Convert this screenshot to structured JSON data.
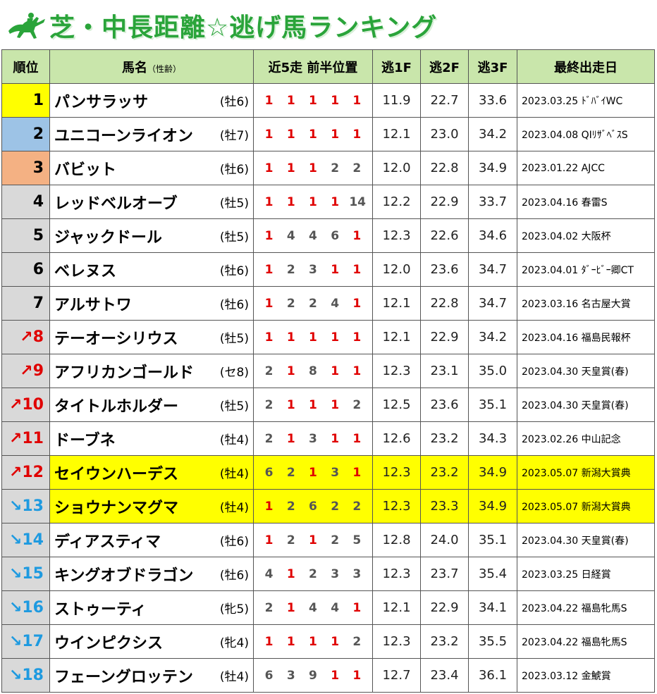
{
  "title": "芝・中長距離☆逃げ馬ランキング",
  "headers": {
    "rank": "順位",
    "name": "馬名",
    "name_sub": "（性齢）",
    "positions": "近5走 前半位置",
    "f1": "逃1F",
    "f2": "逃2F",
    "f3": "逃3F",
    "last": "最終出走日"
  },
  "colors": {
    "header_bg": "#c9e6ab",
    "rank1": "#ffff00",
    "rank2": "#9dc3e6",
    "rank3": "#f4b183",
    "rank_other": "#d9d9d9",
    "highlight": "#ffff00",
    "title": "#2aa43a",
    "red_position": "#e00000",
    "up_arrow": "#e00000",
    "down_arrow": "#1e9ae0"
  },
  "rows": [
    {
      "rank": "1",
      "arrow": "",
      "name": "パンサラッサ",
      "sex": "(牡6)",
      "pos": [
        "1",
        "1",
        "1",
        "1",
        "1"
      ],
      "f1": "11.9",
      "f2": "22.7",
      "f3": "33.6",
      "last": "2023.03.25 ﾄﾞﾊﾞｲWC",
      "rank_bg": "#ffff00",
      "highlight": false
    },
    {
      "rank": "2",
      "arrow": "",
      "name": "ユニコーンライオン",
      "sex": "(牡7)",
      "pos": [
        "1",
        "1",
        "1",
        "1",
        "1"
      ],
      "f1": "12.1",
      "f2": "23.0",
      "f3": "34.2",
      "last": "2023.04.08 QIﾘｻﾞﾍﾞｽS",
      "rank_bg": "#9dc3e6",
      "highlight": false
    },
    {
      "rank": "3",
      "arrow": "",
      "name": "バビット",
      "sex": "(牡6)",
      "pos": [
        "1",
        "1",
        "1",
        "2",
        "2"
      ],
      "f1": "12.0",
      "f2": "22.8",
      "f3": "34.9",
      "last": "2023.01.22 AJCC",
      "rank_bg": "#f4b183",
      "highlight": false
    },
    {
      "rank": "4",
      "arrow": "",
      "name": "レッドベルオーブ",
      "sex": "(牡5)",
      "pos": [
        "1",
        "1",
        "1",
        "1",
        "14"
      ],
      "f1": "12.2",
      "f2": "22.9",
      "f3": "33.7",
      "last": "2023.04.16 春雷S",
      "rank_bg": "#d9d9d9",
      "highlight": false
    },
    {
      "rank": "5",
      "arrow": "",
      "name": "ジャックドール",
      "sex": "(牡5)",
      "pos": [
        "1",
        "4",
        "4",
        "6",
        "1"
      ],
      "f1": "12.3",
      "f2": "22.6",
      "f3": "34.6",
      "last": "2023.04.02 大阪杯",
      "rank_bg": "#d9d9d9",
      "highlight": false
    },
    {
      "rank": "6",
      "arrow": "",
      "name": "ベレヌス",
      "sex": "(牡6)",
      "pos": [
        "1",
        "2",
        "3",
        "1",
        "1"
      ],
      "f1": "12.0",
      "f2": "23.6",
      "f3": "34.7",
      "last": "2023.04.01 ﾀﾞｰﾋﾞｰ卿CT",
      "rank_bg": "#d9d9d9",
      "highlight": false
    },
    {
      "rank": "7",
      "arrow": "",
      "name": "アルサトワ",
      "sex": "(牡6)",
      "pos": [
        "1",
        "2",
        "2",
        "4",
        "1"
      ],
      "f1": "12.1",
      "f2": "22.8",
      "f3": "34.7",
      "last": "2023.03.16 名古屋大賞",
      "rank_bg": "#d9d9d9",
      "highlight": false
    },
    {
      "rank": "8",
      "arrow": "up",
      "name": "テーオーシリウス",
      "sex": "(牡5)",
      "pos": [
        "1",
        "1",
        "1",
        "1",
        "1"
      ],
      "f1": "12.1",
      "f2": "22.9",
      "f3": "34.2",
      "last": "2023.04.16 福島民報杯",
      "rank_bg": "#d9d9d9",
      "highlight": false
    },
    {
      "rank": "9",
      "arrow": "up",
      "name": "アフリカンゴールド",
      "sex": "(セ8)",
      "pos": [
        "2",
        "1",
        "8",
        "1",
        "1"
      ],
      "f1": "12.3",
      "f2": "23.1",
      "f3": "35.0",
      "last": "2023.04.30 天皇賞(春)",
      "rank_bg": "#d9d9d9",
      "highlight": false
    },
    {
      "rank": "10",
      "arrow": "up",
      "name": "タイトルホルダー",
      "sex": "(牡5)",
      "pos": [
        "2",
        "1",
        "1",
        "1",
        "2"
      ],
      "f1": "12.5",
      "f2": "23.6",
      "f3": "35.1",
      "last": "2023.04.30 天皇賞(春)",
      "rank_bg": "#d9d9d9",
      "highlight": false
    },
    {
      "rank": "11",
      "arrow": "up",
      "name": "ドーブネ",
      "sex": "(牡4)",
      "pos": [
        "2",
        "1",
        "3",
        "1",
        "1"
      ],
      "f1": "12.6",
      "f2": "23.2",
      "f3": "34.3",
      "last": "2023.02.26 中山記念",
      "rank_bg": "#d9d9d9",
      "highlight": false
    },
    {
      "rank": "12",
      "arrow": "up",
      "name": "セイウンハーデス",
      "sex": "(牡4)",
      "pos": [
        "6",
        "2",
        "1",
        "3",
        "1"
      ],
      "f1": "12.3",
      "f2": "23.2",
      "f3": "34.9",
      "last": "2023.05.07 新潟大賞典",
      "rank_bg": "#d9d9d9",
      "highlight": true
    },
    {
      "rank": "13",
      "arrow": "down",
      "name": "ショウナンマグマ",
      "sex": "(牡4)",
      "pos": [
        "1",
        "2",
        "6",
        "2",
        "2"
      ],
      "f1": "12.3",
      "f2": "23.3",
      "f3": "34.9",
      "last": "2023.05.07 新潟大賞典",
      "rank_bg": "#d9d9d9",
      "highlight": true
    },
    {
      "rank": "14",
      "arrow": "down",
      "name": "ディアスティマ",
      "sex": "(牡6)",
      "pos": [
        "1",
        "2",
        "1",
        "2",
        "5"
      ],
      "f1": "12.8",
      "f2": "24.0",
      "f3": "35.1",
      "last": "2023.04.30 天皇賞(春)",
      "rank_bg": "#d9d9d9",
      "highlight": false
    },
    {
      "rank": "15",
      "arrow": "down",
      "name": "キングオブドラゴン",
      "sex": "(牡6)",
      "pos": [
        "4",
        "1",
        "2",
        "3",
        "3"
      ],
      "f1": "12.3",
      "f2": "23.7",
      "f3": "35.4",
      "last": "2023.03.25 日経賞",
      "rank_bg": "#d9d9d9",
      "highlight": false
    },
    {
      "rank": "16",
      "arrow": "down",
      "name": "ストゥーティ",
      "sex": "(牝5)",
      "pos": [
        "2",
        "1",
        "4",
        "4",
        "1"
      ],
      "f1": "12.1",
      "f2": "22.9",
      "f3": "34.1",
      "last": "2023.04.22 福島牝馬S",
      "rank_bg": "#d9d9d9",
      "highlight": false
    },
    {
      "rank": "17",
      "arrow": "down",
      "name": "ウインピクシス",
      "sex": "(牝4)",
      "pos": [
        "1",
        "1",
        "1",
        "1",
        "2"
      ],
      "f1": "12.3",
      "f2": "23.2",
      "f3": "35.5",
      "last": "2023.04.22 福島牝馬S",
      "rank_bg": "#d9d9d9",
      "highlight": false
    },
    {
      "rank": "18",
      "arrow": "down",
      "name": "フェーングロッテン",
      "sex": "(牡4)",
      "pos": [
        "6",
        "3",
        "9",
        "1",
        "1"
      ],
      "f1": "12.7",
      "f2": "23.4",
      "f3": "36.1",
      "last": "2023.03.12 金鯱賞",
      "rank_bg": "#d9d9d9",
      "highlight": false
    }
  ]
}
